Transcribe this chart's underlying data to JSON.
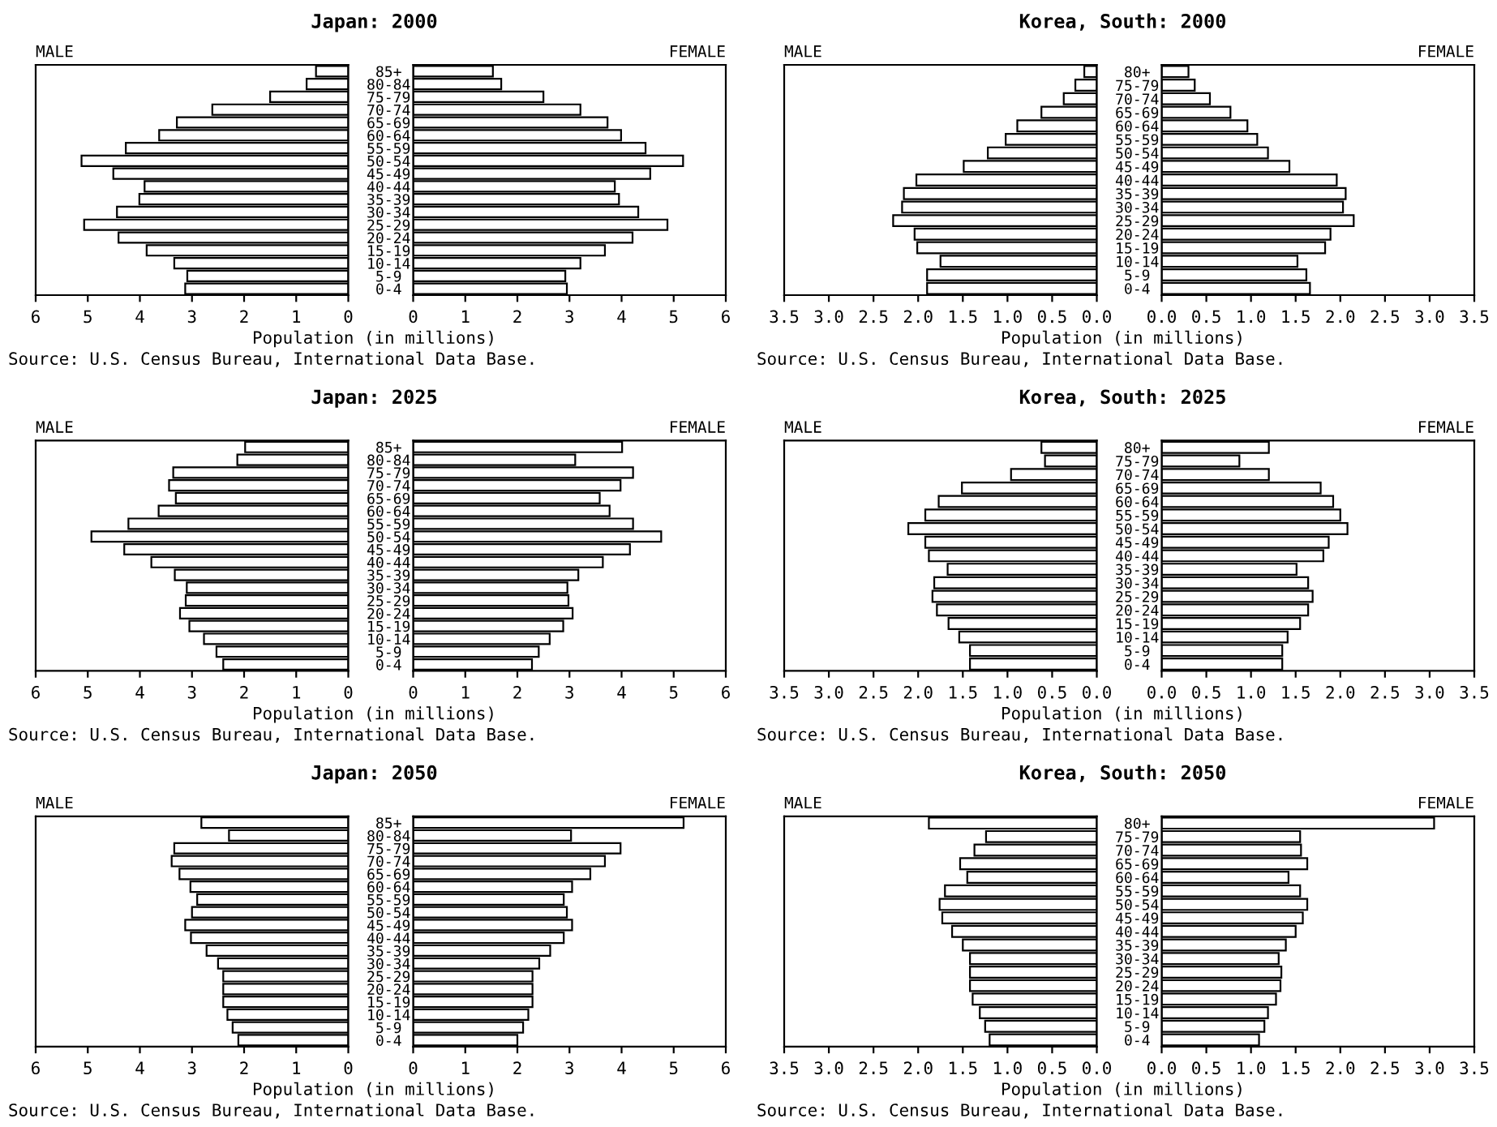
{
  "chart_data": [
    {
      "type": "bar",
      "orientation": "horizontal",
      "title": "Japan: 2000",
      "xlabel": "Population (in millions)",
      "annotations": [
        "Source: U.S. Census Bureau, International Data Base."
      ],
      "categories": [
        "85+",
        "80-84",
        "75-79",
        "70-74",
        "65-69",
        "60-64",
        "55-59",
        "50-54",
        "45-49",
        "40-44",
        "35-39",
        "30-34",
        "25-29",
        "20-24",
        "15-19",
        "10-14",
        "5-9",
        "0-4"
      ],
      "series": [
        {
          "name": "MALE",
          "color": "#ffffff",
          "values": [
            0.62,
            0.8,
            1.5,
            2.61,
            3.29,
            3.63,
            4.27,
            5.12,
            4.51,
            3.91,
            4.01,
            4.44,
            5.07,
            4.41,
            3.87,
            3.34,
            3.09,
            3.13
          ]
        }
      ],
      "xlim": [
        6,
        0
      ],
      "xticks": [
        6,
        5,
        4,
        3,
        2,
        1,
        0
      ]
    },
    {
      "type": "bar",
      "orientation": "horizontal",
      "tick_labels": "x",
      "categories": [
        null,
        null,
        null,
        null,
        null,
        null,
        null,
        null,
        null,
        null,
        null,
        null,
        null,
        null,
        null,
        null,
        null,
        null
      ],
      "series": [
        {
          "name": "FEMALE",
          "color": "#ffffff",
          "values": [
            1.53,
            1.69,
            2.5,
            3.21,
            3.73,
            3.99,
            4.46,
            5.18,
            4.55,
            3.87,
            3.95,
            4.32,
            4.88,
            4.21,
            3.68,
            3.21,
            2.92,
            2.95
          ]
        }
      ],
      "xlim": [
        0,
        6
      ],
      "xticks": [
        0,
        1,
        2,
        3,
        4,
        5,
        6
      ]
    },
    {
      "type": "bar",
      "orientation": "horizontal",
      "title": "Korea, South: 2000",
      "xlabel": "Population (in millions)",
      "annotations": [
        "Source: U.S. Census Bureau, International Data Base."
      ],
      "categories": [
        "80+",
        "75-79",
        "70-74",
        "65-69",
        "60-64",
        "55-59",
        "50-54",
        "45-49",
        "40-44",
        "35-39",
        "30-34",
        "25-29",
        "20-24",
        "15-19",
        "10-14",
        "5-9",
        "0-4"
      ],
      "series": [
        {
          "name": "MALE",
          "color": "#ffffff",
          "values": [
            0.14,
            0.24,
            0.37,
            0.62,
            0.89,
            1.02,
            1.22,
            1.49,
            2.02,
            2.16,
            2.18,
            2.28,
            2.04,
            2.01,
            1.75,
            1.9,
            1.9
          ]
        }
      ],
      "xlim": [
        3.5,
        0
      ],
      "xticks": [
        3.5,
        {
          "value": 3,
          "label": "3.0"
        },
        2.5,
        {
          "value": 2,
          "label": "2.0"
        },
        1.5,
        {
          "value": 1,
          "label": "1.0"
        },
        0.5,
        {
          "value": 0,
          "label": "0.0"
        }
      ]
    },
    {
      "type": "bar",
      "orientation": "horizontal",
      "tick_labels": "x",
      "categories": [
        null,
        null,
        null,
        null,
        null,
        null,
        null,
        null,
        null,
        null,
        null,
        null,
        null,
        null,
        null,
        null,
        null
      ],
      "series": [
        {
          "name": "FEMALE",
          "color": "#ffffff",
          "values": [
            0.3,
            0.37,
            0.54,
            0.77,
            0.96,
            1.07,
            1.19,
            1.43,
            1.96,
            2.06,
            2.03,
            2.15,
            1.89,
            1.83,
            1.52,
            1.62,
            1.66
          ]
        }
      ],
      "xlim": [
        0,
        3.5
      ],
      "xticks": [
        {
          "value": 0,
          "label": "0.0"
        },
        0.5,
        {
          "value": 1,
          "label": "1.0"
        },
        1.5,
        {
          "value": 2,
          "label": "2.0"
        },
        2.5,
        {
          "value": 3,
          "label": "3.0"
        },
        3.5
      ]
    },
    {
      "type": "bar",
      "orientation": "horizontal",
      "title": "Japan: 2025",
      "xlabel": "Population (in millions)",
      "annotations": [
        "Source: U.S. Census Bureau, International Data Base."
      ],
      "categories": [
        "85+",
        "80-84",
        "75-79",
        "70-74",
        "65-69",
        "60-64",
        "55-59",
        "50-54",
        "45-49",
        "40-44",
        "35-39",
        "30-34",
        "25-29",
        "20-24",
        "15-19",
        "10-14",
        "5-9",
        "0-4"
      ],
      "series": [
        {
          "name": "MALE",
          "color": "#ffffff",
          "values": [
            1.98,
            2.13,
            3.36,
            3.44,
            3.31,
            3.64,
            4.22,
            4.93,
            4.3,
            3.78,
            3.33,
            3.1,
            3.12,
            3.23,
            3.05,
            2.77,
            2.53,
            2.4
          ]
        }
      ],
      "xlim": [
        6,
        0
      ],
      "xticks": [
        6,
        5,
        4,
        3,
        2,
        1,
        0
      ]
    },
    {
      "type": "bar",
      "orientation": "horizontal",
      "tick_labels": "x",
      "categories": [
        null,
        null,
        null,
        null,
        null,
        null,
        null,
        null,
        null,
        null,
        null,
        null,
        null,
        null,
        null,
        null,
        null,
        null
      ],
      "series": [
        {
          "name": "FEMALE",
          "color": "#ffffff",
          "values": [
            4.01,
            3.11,
            4.22,
            3.98,
            3.58,
            3.77,
            4.22,
            4.76,
            4.16,
            3.64,
            3.17,
            2.96,
            2.98,
            3.06,
            2.88,
            2.62,
            2.41,
            2.28
          ]
        }
      ],
      "xlim": [
        0,
        6
      ],
      "xticks": [
        0,
        1,
        2,
        3,
        4,
        5,
        6
      ]
    },
    {
      "type": "bar",
      "orientation": "horizontal",
      "title": "Korea, South: 2025",
      "xlabel": "Population (in millions)",
      "annotations": [
        "Source: U.S. Census Bureau, International Data Base."
      ],
      "categories": [
        "80+",
        "75-79",
        "70-74",
        "65-69",
        "60-64",
        "55-59",
        "50-54",
        "45-49",
        "40-44",
        "35-39",
        "30-34",
        "25-29",
        "20-24",
        "15-19",
        "10-14",
        "5-9",
        "0-4"
      ],
      "series": [
        {
          "name": "MALE",
          "color": "#ffffff",
          "values": [
            0.62,
            0.58,
            0.96,
            1.51,
            1.77,
            1.92,
            2.11,
            1.92,
            1.88,
            1.67,
            1.82,
            1.84,
            1.79,
            1.66,
            1.54,
            1.42,
            1.42
          ]
        }
      ],
      "xlim": [
        3.5,
        0
      ],
      "xticks": [
        3.5,
        {
          "value": 3,
          "label": "3.0"
        },
        2.5,
        {
          "value": 2,
          "label": "2.0"
        },
        1.5,
        {
          "value": 1,
          "label": "1.0"
        },
        0.5,
        {
          "value": 0,
          "label": "0.0"
        }
      ]
    },
    {
      "type": "bar",
      "orientation": "horizontal",
      "tick_labels": "x",
      "categories": [
        null,
        null,
        null,
        null,
        null,
        null,
        null,
        null,
        null,
        null,
        null,
        null,
        null,
        null,
        null,
        null,
        null
      ],
      "series": [
        {
          "name": "FEMALE",
          "color": "#ffffff",
          "values": [
            1.2,
            0.87,
            1.2,
            1.78,
            1.92,
            2.0,
            2.08,
            1.87,
            1.81,
            1.51,
            1.64,
            1.69,
            1.64,
            1.55,
            1.41,
            1.35,
            1.35
          ]
        }
      ],
      "xlim": [
        0,
        3.5
      ],
      "xticks": [
        {
          "value": 0,
          "label": "0.0"
        },
        0.5,
        {
          "value": 1,
          "label": "1.0"
        },
        1.5,
        {
          "value": 2,
          "label": "2.0"
        },
        2.5,
        {
          "value": 3,
          "label": "3.0"
        },
        3.5
      ]
    },
    {
      "type": "bar",
      "orientation": "horizontal",
      "title": "Japan: 2050",
      "xlabel": "Population (in millions)",
      "annotations": [
        "Source: U.S. Census Bureau, International Data Base."
      ],
      "categories": [
        "85+",
        "80-84",
        "75-79",
        "70-74",
        "65-69",
        "60-64",
        "55-59",
        "50-54",
        "45-49",
        "40-44",
        "35-39",
        "30-34",
        "25-29",
        "20-24",
        "15-19",
        "10-14",
        "5-9",
        "0-4"
      ],
      "series": [
        {
          "name": "MALE",
          "color": "#ffffff",
          "values": [
            2.82,
            2.29,
            3.34,
            3.39,
            3.24,
            3.03,
            2.9,
            3.0,
            3.13,
            3.02,
            2.72,
            2.5,
            2.4,
            2.4,
            2.4,
            2.32,
            2.22,
            2.11
          ]
        }
      ],
      "xlim": [
        6,
        0
      ],
      "xticks": [
        6,
        5,
        4,
        3,
        2,
        1,
        0
      ]
    },
    {
      "type": "bar",
      "orientation": "horizontal",
      "tick_labels": "x",
      "categories": [
        null,
        null,
        null,
        null,
        null,
        null,
        null,
        null,
        null,
        null,
        null,
        null,
        null,
        null,
        null,
        null,
        null,
        null
      ],
      "series": [
        {
          "name": "FEMALE",
          "color": "#ffffff",
          "values": [
            5.19,
            3.03,
            3.98,
            3.68,
            3.4,
            3.05,
            2.89,
            2.95,
            3.05,
            2.89,
            2.63,
            2.42,
            2.29,
            2.29,
            2.29,
            2.21,
            2.11,
            2.0
          ]
        }
      ],
      "xlim": [
        0,
        6
      ],
      "xticks": [
        0,
        1,
        2,
        3,
        4,
        5,
        6
      ]
    },
    {
      "type": "bar",
      "orientation": "horizontal",
      "title": "Korea, South: 2050",
      "xlabel": "Population (in millions)",
      "annotations": [
        "Source: U.S. Census Bureau, International Data Base."
      ],
      "categories": [
        "80+",
        "75-79",
        "70-74",
        "65-69",
        "60-64",
        "55-59",
        "50-54",
        "45-49",
        "40-44",
        "35-39",
        "30-34",
        "25-29",
        "20-24",
        "15-19",
        "10-14",
        "5-9",
        "0-4"
      ],
      "series": [
        {
          "name": "MALE",
          "color": "#ffffff",
          "values": [
            1.88,
            1.24,
            1.37,
            1.53,
            1.45,
            1.7,
            1.76,
            1.73,
            1.62,
            1.5,
            1.42,
            1.42,
            1.42,
            1.39,
            1.31,
            1.25,
            1.2
          ]
        }
      ],
      "xlim": [
        3.5,
        0
      ],
      "xticks": [
        3.5,
        {
          "value": 3,
          "label": "3.0"
        },
        2.5,
        {
          "value": 2,
          "label": "2.0"
        },
        1.5,
        {
          "value": 1,
          "label": "1.0"
        },
        0.5,
        {
          "value": 0,
          "label": "0.0"
        }
      ]
    },
    {
      "type": "bar",
      "orientation": "horizontal",
      "tick_labels": "x",
      "categories": [
        null,
        null,
        null,
        null,
        null,
        null,
        null,
        null,
        null,
        null,
        null,
        null,
        null,
        null,
        null,
        null,
        null
      ],
      "series": [
        {
          "name": "FEMALE",
          "color": "#ffffff",
          "values": [
            3.05,
            1.55,
            1.56,
            1.63,
            1.42,
            1.55,
            1.63,
            1.58,
            1.5,
            1.39,
            1.31,
            1.34,
            1.33,
            1.28,
            1.19,
            1.15,
            1.09
          ]
        }
      ],
      "xlim": [
        0,
        3.5
      ],
      "xticks": [
        {
          "value": 0,
          "label": "0.0"
        },
        0.5,
        {
          "value": 1,
          "label": "1.0"
        },
        1.5,
        {
          "value": 2,
          "label": "2.0"
        },
        2.5,
        {
          "value": 3,
          "label": "3.0"
        },
        3.5
      ]
    }
  ]
}
